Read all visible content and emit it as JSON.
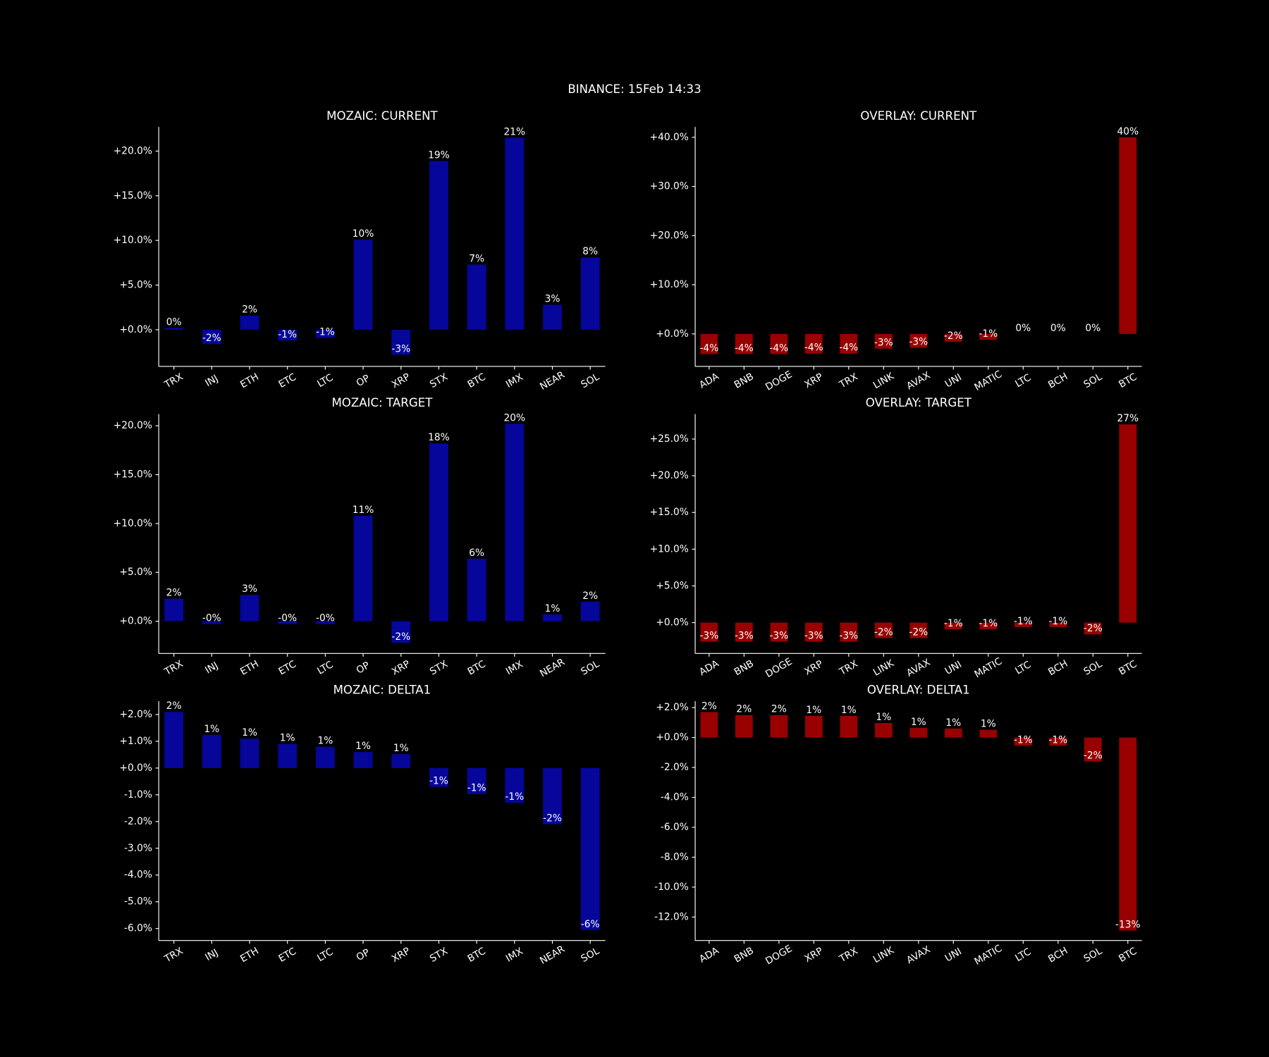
{
  "title": "BINANCE: 15Feb 14:33",
  "chart_data": [
    {
      "type": "bar",
      "title": "MOZAIC: CURRENT",
      "color": "#06069a",
      "categories": [
        "TRX",
        "INJ",
        "ETH",
        "ETC",
        "LTC",
        "OP",
        "XRP",
        "STX",
        "BTC",
        "IMX",
        "NEAR",
        "SOL"
      ],
      "values": [
        0.2,
        -1.6,
        1.6,
        -1.2,
        -0.9,
        10.1,
        -2.8,
        18.9,
        7.3,
        21.5,
        2.8,
        8.1
      ],
      "value_labels": [
        "0%",
        "-2%",
        "2%",
        "-1%",
        "-1%",
        "10%",
        "-3%",
        "19%",
        "7%",
        "21%",
        "3%",
        "8%"
      ],
      "ylim": [
        -4.1,
        22.7
      ],
      "yticks": [
        {
          "value": 0,
          "label": "+0.0%"
        },
        {
          "value": 5,
          "label": "+5.0%"
        },
        {
          "value": 10,
          "label": "+10.0%"
        },
        {
          "value": 15,
          "label": "+15.0%"
        },
        {
          "value": 20,
          "label": "+20.0%"
        }
      ]
    },
    {
      "type": "bar",
      "title": "OVERLAY: CURRENT",
      "color": "#990000",
      "categories": [
        "ADA",
        "BNB",
        "DOGE",
        "XRP",
        "TRX",
        "LINK",
        "AVAX",
        "UNI",
        "MATIC",
        "LTC",
        "BCH",
        "SOL",
        "BTC"
      ],
      "values": [
        -4.1,
        -4.1,
        -4.1,
        -4.0,
        -4.0,
        -3.0,
        -2.8,
        -1.6,
        -1.2,
        0.0,
        0.0,
        0.0,
        40.0
      ],
      "value_labels": [
        "-4%",
        "-4%",
        "-4%",
        "-4%",
        "-4%",
        "-3%",
        "-3%",
        "-2%",
        "-1%",
        "0%",
        "0%",
        "0%",
        "40%"
      ],
      "ylim": [
        -6.6,
        42.1
      ],
      "yticks": [
        {
          "value": 0,
          "label": "+0.0%"
        },
        {
          "value": 10,
          "label": "+10.0%"
        },
        {
          "value": 20,
          "label": "+20.0%"
        },
        {
          "value": 30,
          "label": "+30.0%"
        },
        {
          "value": 40,
          "label": "+40.0%"
        }
      ]
    },
    {
      "type": "bar",
      "title": "MOZAIC: TARGET",
      "color": "#06069a",
      "categories": [
        "TRX",
        "INJ",
        "ETH",
        "ETC",
        "LTC",
        "OP",
        "XRP",
        "STX",
        "BTC",
        "IMX",
        "NEAR",
        "SOL"
      ],
      "values": [
        2.3,
        -0.3,
        2.7,
        -0.3,
        -0.3,
        10.8,
        -2.2,
        18.2,
        6.4,
        20.2,
        0.7,
        2.0
      ],
      "value_labels": [
        "2%",
        "-0%",
        "3%",
        "-0%",
        "-0%",
        "11%",
        "-2%",
        "18%",
        "6%",
        "20%",
        "1%",
        "2%"
      ],
      "ylim": [
        -3.3,
        21.2
      ],
      "yticks": [
        {
          "value": 0,
          "label": "+0.0%"
        },
        {
          "value": 5,
          "label": "+5.0%"
        },
        {
          "value": 10,
          "label": "+10.0%"
        },
        {
          "value": 15,
          "label": "+15.0%"
        },
        {
          "value": 20,
          "label": "+20.0%"
        }
      ]
    },
    {
      "type": "bar",
      "title": "OVERLAY: TARGET",
      "color": "#990000",
      "categories": [
        "ADA",
        "BNB",
        "DOGE",
        "XRP",
        "TRX",
        "LINK",
        "AVAX",
        "UNI",
        "MATIC",
        "LTC",
        "BCH",
        "SOL",
        "BTC"
      ],
      "values": [
        -2.6,
        -2.6,
        -2.6,
        -2.6,
        -2.6,
        -2.1,
        -2.1,
        -0.9,
        -0.9,
        -0.6,
        -0.6,
        -1.6,
        27.0
      ],
      "value_labels": [
        "-3%",
        "-3%",
        "-3%",
        "-3%",
        "-3%",
        "-2%",
        "-2%",
        "-1%",
        "-1%",
        "-1%",
        "-1%",
        "-2%",
        "27%"
      ],
      "ylim": [
        -4.2,
        28.4
      ],
      "yticks": [
        {
          "value": 0,
          "label": "+0.0%"
        },
        {
          "value": 5,
          "label": "+5.0%"
        },
        {
          "value": 10,
          "label": "+10.0%"
        },
        {
          "value": 15,
          "label": "+15.0%"
        },
        {
          "value": 20,
          "label": "+20.0%"
        },
        {
          "value": 25,
          "label": "+25.0%"
        }
      ]
    },
    {
      "type": "bar",
      "title": "MOZAIC: DELTA1",
      "color": "#06069a",
      "categories": [
        "TRX",
        "INJ",
        "ETH",
        "ETC",
        "LTC",
        "OP",
        "XRP",
        "STX",
        "BTC",
        "IMX",
        "NEAR",
        "SOL"
      ],
      "values": [
        2.1,
        1.24,
        1.1,
        0.9,
        0.8,
        0.6,
        0.52,
        -0.7,
        -0.97,
        -1.3,
        -2.1,
        -6.06
      ],
      "value_labels": [
        "2%",
        "1%",
        "1%",
        "1%",
        "1%",
        "1%",
        "1%",
        "-1%",
        "-1%",
        "-1%",
        "-2%",
        "-6%"
      ],
      "ylim": [
        -6.45,
        2.5
      ],
      "yticks": [
        {
          "value": -6,
          "label": "-6.0%"
        },
        {
          "value": -5,
          "label": "-5.0%"
        },
        {
          "value": -4,
          "label": "-4.0%"
        },
        {
          "value": -3,
          "label": "-3.0%"
        },
        {
          "value": -2,
          "label": "-2.0%"
        },
        {
          "value": -1,
          "label": "-1.0%"
        },
        {
          "value": 0,
          "label": "+0.0%"
        },
        {
          "value": 1,
          "label": "+1.0%"
        },
        {
          "value": 2,
          "label": "+2.0%"
        }
      ]
    },
    {
      "type": "bar",
      "title": "OVERLAY: DELTA1",
      "color": "#990000",
      "categories": [
        "ADA",
        "BNB",
        "DOGE",
        "XRP",
        "TRX",
        "LINK",
        "AVAX",
        "UNI",
        "MATIC",
        "LTC",
        "BCH",
        "SOL",
        "BTC"
      ],
      "values": [
        1.7,
        1.5,
        1.5,
        1.45,
        1.45,
        0.97,
        0.65,
        0.6,
        0.52,
        -0.55,
        -0.55,
        -1.6,
        -12.9
      ],
      "value_labels": [
        "2%",
        "2%",
        "2%",
        "1%",
        "1%",
        "1%",
        "1%",
        "1%",
        "1%",
        "-1%",
        "-1%",
        "-2%",
        "-13%"
      ],
      "ylim": [
        -13.57,
        2.43
      ],
      "yticks": [
        {
          "value": -12,
          "label": "-12.0%"
        },
        {
          "value": -10,
          "label": "-10.0%"
        },
        {
          "value": -8,
          "label": "-8.0%"
        },
        {
          "value": -6,
          "label": "-6.0%"
        },
        {
          "value": -4,
          "label": "-4.0%"
        },
        {
          "value": -2,
          "label": "-2.0%"
        },
        {
          "value": 0,
          "label": "+0.0%"
        },
        {
          "value": 2,
          "label": "+2.0%"
        }
      ]
    }
  ]
}
